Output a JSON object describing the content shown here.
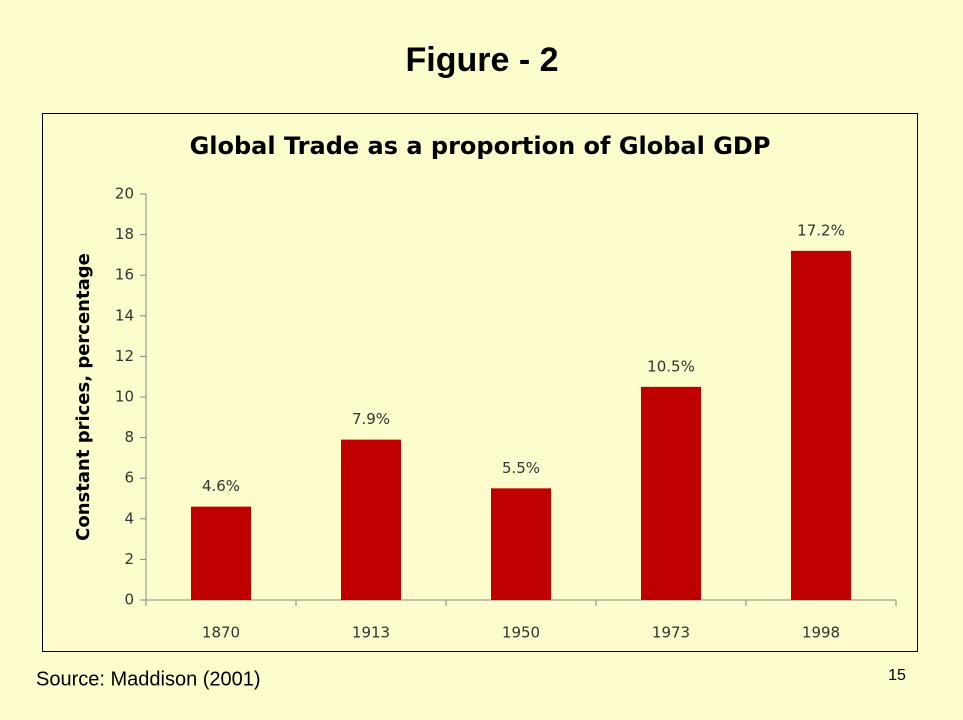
{
  "title": "Figure - 2",
  "source": "Source: Maddison (2001)",
  "page_number": "15",
  "chart_data": {
    "type": "bar",
    "title": "Global Trade as a proportion  of Global GDP",
    "y_label": "Constant prices, percentage",
    "categories": [
      "1870",
      "1913",
      "1950",
      "1973",
      "1998"
    ],
    "values": [
      4.6,
      7.9,
      5.5,
      10.5,
      17.2
    ],
    "value_labels": [
      "4.6%",
      "7.9%",
      "5.5%",
      "10.5%",
      "17.2%"
    ],
    "color": "#c00000",
    "ylim": [
      0,
      20
    ],
    "yticks": [
      0,
      2,
      4,
      6,
      8,
      10,
      12,
      14,
      16,
      18,
      20
    ],
    "grid": false
  }
}
